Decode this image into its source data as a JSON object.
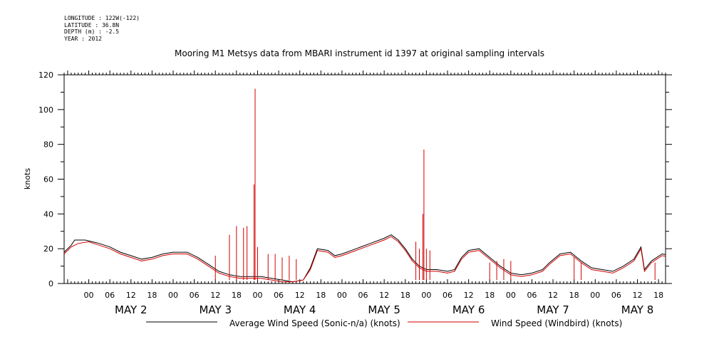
{
  "meta": {
    "longitude": "LONGITUDE : 122W(-122)",
    "latitude": "LATITUDE : 36.8N",
    "depth": "DEPTH (m) : -2.5",
    "year": "YEAR : 2012"
  },
  "chart_data": {
    "type": "line",
    "title": "Mooring M1 Metsys data from MBARI instrument id 1397 at original sampling intervals",
    "ylabel": "knots",
    "xlabel": "",
    "ylim": [
      0,
      120
    ],
    "yticks": [
      0,
      20,
      40,
      60,
      80,
      100,
      120
    ],
    "xlim_hours": [
      -7,
      164
    ],
    "hour_ticks": [
      "00",
      "06",
      "12",
      "18",
      "00",
      "06",
      "12",
      "18",
      "00",
      "06",
      "12",
      "18",
      "00",
      "06",
      "12",
      "18",
      "00",
      "06",
      "12",
      "18",
      "00",
      "06",
      "12",
      "18",
      "00",
      "06",
      "12",
      "18"
    ],
    "days": [
      "MAY  2",
      "MAY  3",
      "MAY  4",
      "MAY  5",
      "MAY  6",
      "MAY  7",
      "MAY  8"
    ],
    "grid": false,
    "legend_position": "bottom",
    "series": [
      {
        "name": "Average Wind Speed (Sonic-n/a) (knots)",
        "color": "#000000",
        "points": [
          [
            -7,
            18
          ],
          [
            -5,
            22
          ],
          [
            -4,
            25
          ],
          [
            -1,
            25
          ],
          [
            1,
            24
          ],
          [
            3,
            23
          ],
          [
            6,
            21
          ],
          [
            9,
            18
          ],
          [
            12,
            16
          ],
          [
            15,
            14
          ],
          [
            18,
            15
          ],
          [
            21,
            17
          ],
          [
            24,
            18
          ],
          [
            28,
            18
          ],
          [
            31,
            15
          ],
          [
            34,
            11
          ],
          [
            37,
            7
          ],
          [
            40,
            5
          ],
          [
            43,
            4
          ],
          [
            46,
            4
          ],
          [
            49,
            4
          ],
          [
            52,
            3
          ],
          [
            55,
            2
          ],
          [
            58,
            1
          ],
          [
            61,
            2
          ],
          [
            63,
            9
          ],
          [
            65,
            20
          ],
          [
            68,
            19
          ],
          [
            70,
            16
          ],
          [
            72,
            17
          ],
          [
            76,
            20
          ],
          [
            80,
            23
          ],
          [
            84,
            26
          ],
          [
            86,
            28
          ],
          [
            88,
            25
          ],
          [
            90,
            20
          ],
          [
            92,
            14
          ],
          [
            94,
            10
          ],
          [
            96,
            8
          ],
          [
            99,
            8
          ],
          [
            102,
            7
          ],
          [
            104,
            8
          ],
          [
            106,
            15
          ],
          [
            108,
            19
          ],
          [
            111,
            20
          ],
          [
            114,
            15
          ],
          [
            117,
            10
          ],
          [
            120,
            6
          ],
          [
            123,
            5
          ],
          [
            126,
            6
          ],
          [
            129,
            8
          ],
          [
            131,
            12
          ],
          [
            134,
            17
          ],
          [
            137,
            18
          ],
          [
            140,
            13
          ],
          [
            143,
            9
          ],
          [
            146,
            8
          ],
          [
            149,
            7
          ],
          [
            152,
            10
          ],
          [
            155,
            14
          ],
          [
            157,
            21
          ],
          [
            158,
            8
          ],
          [
            160,
            13
          ],
          [
            163,
            17
          ],
          [
            166,
            16
          ],
          [
            168,
            13
          ],
          [
            170,
            6
          ],
          [
            172,
            4
          ],
          [
            175,
            4
          ],
          [
            178,
            6
          ],
          [
            180,
            10
          ]
        ]
      },
      {
        "name": "Wind Speed (Windbird) (knots)",
        "color": "#d40000",
        "points": [
          [
            -7,
            17
          ],
          [
            -5,
            21
          ],
          [
            -3,
            23
          ],
          [
            0,
            24
          ],
          [
            3,
            22
          ],
          [
            6,
            20
          ],
          [
            9,
            17
          ],
          [
            12,
            15
          ],
          [
            15,
            13
          ],
          [
            18,
            14
          ],
          [
            21,
            16
          ],
          [
            24,
            17
          ],
          [
            28,
            17
          ],
          [
            31,
            14
          ],
          [
            34,
            10
          ],
          [
            37,
            6
          ],
          [
            40,
            4
          ],
          [
            43,
            3
          ],
          [
            46,
            3
          ],
          [
            49,
            3
          ],
          [
            52,
            2
          ],
          [
            55,
            1
          ],
          [
            58,
            1
          ],
          [
            61,
            2
          ],
          [
            63,
            8
          ],
          [
            65,
            19
          ],
          [
            68,
            18
          ],
          [
            70,
            15
          ],
          [
            72,
            16
          ],
          [
            76,
            19
          ],
          [
            80,
            22
          ],
          [
            84,
            25
          ],
          [
            86,
            27
          ],
          [
            88,
            24
          ],
          [
            90,
            19
          ],
          [
            92,
            13
          ],
          [
            94,
            9
          ],
          [
            96,
            7
          ],
          [
            99,
            7
          ],
          [
            102,
            6
          ],
          [
            104,
            7
          ],
          [
            106,
            14
          ],
          [
            108,
            18
          ],
          [
            111,
            19
          ],
          [
            114,
            14
          ],
          [
            117,
            9
          ],
          [
            120,
            5
          ],
          [
            123,
            4
          ],
          [
            126,
            5
          ],
          [
            129,
            7
          ],
          [
            131,
            11
          ],
          [
            134,
            16
          ],
          [
            137,
            17
          ],
          [
            140,
            12
          ],
          [
            143,
            8
          ],
          [
            146,
            7
          ],
          [
            149,
            6
          ],
          [
            152,
            9
          ],
          [
            155,
            13
          ],
          [
            157,
            20
          ],
          [
            158,
            7
          ],
          [
            160,
            12
          ],
          [
            163,
            16
          ],
          [
            166,
            15
          ],
          [
            168,
            12
          ],
          [
            170,
            5
          ],
          [
            172,
            3
          ],
          [
            175,
            3
          ],
          [
            178,
            5
          ],
          [
            180,
            9
          ]
        ],
        "spikes": [
          [
            36,
            16
          ],
          [
            40,
            28
          ],
          [
            42,
            33
          ],
          [
            44,
            32
          ],
          [
            45,
            33
          ],
          [
            47,
            57
          ],
          [
            47.3,
            112
          ],
          [
            48,
            21
          ],
          [
            51,
            17
          ],
          [
            53,
            17
          ],
          [
            55,
            15
          ],
          [
            57,
            16
          ],
          [
            59,
            14
          ],
          [
            93,
            24
          ],
          [
            94,
            20
          ],
          [
            95,
            40
          ],
          [
            95.3,
            77
          ],
          [
            96,
            20
          ],
          [
            97,
            19
          ],
          [
            114,
            12
          ],
          [
            116,
            13
          ],
          [
            118,
            14
          ],
          [
            120,
            13
          ],
          [
            138,
            15
          ],
          [
            140,
            12
          ],
          [
            161,
            12
          ],
          [
            165,
            11
          ],
          [
            176,
            10
          ]
        ]
      }
    ]
  }
}
